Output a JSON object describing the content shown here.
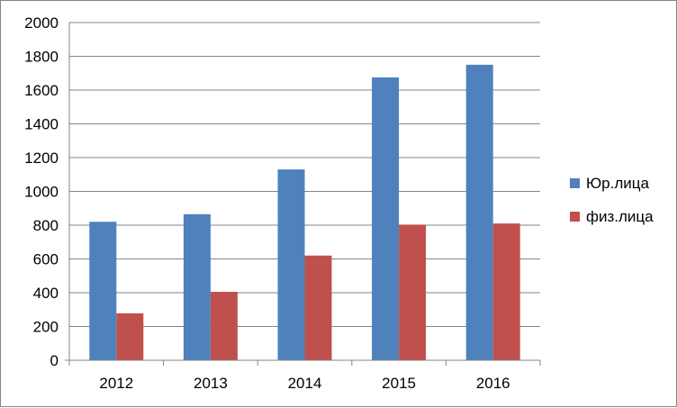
{
  "chart_data": {
    "type": "bar",
    "categories": [
      "2012",
      "2013",
      "2014",
      "2015",
      "2016"
    ],
    "series": [
      {
        "name": "Юр.лица",
        "color": "#4F81BD",
        "values": [
          820,
          865,
          1130,
          1675,
          1750
        ]
      },
      {
        "name": "физ.лица",
        "color": "#C0504D",
        "values": [
          278,
          405,
          620,
          803,
          810
        ]
      }
    ],
    "ylim": [
      0,
      2000
    ],
    "yticks": [
      "0",
      "200",
      "400",
      "600",
      "800",
      "1000",
      "1200",
      "1400",
      "1600",
      "1800",
      "2000"
    ],
    "grid": true,
    "legend_position": "right"
  }
}
